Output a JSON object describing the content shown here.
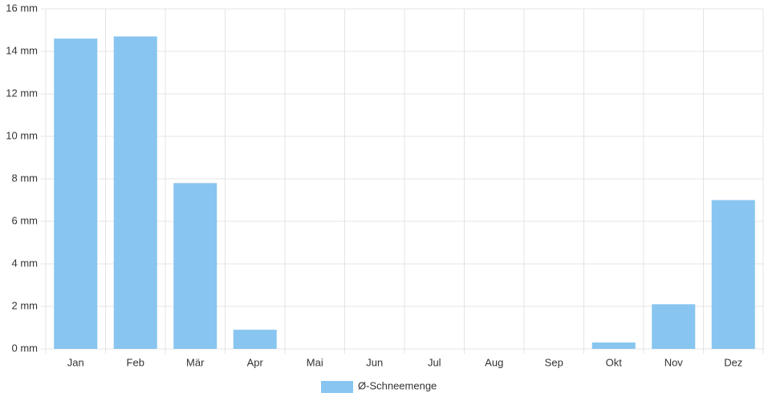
{
  "chart_data": {
    "type": "bar",
    "categories": [
      "Jan",
      "Feb",
      "Mär",
      "Apr",
      "Mai",
      "Jun",
      "Jul",
      "Aug",
      "Sep",
      "Okt",
      "Nov",
      "Dez"
    ],
    "series": [
      {
        "name": "Ø-Schneemenge",
        "color": "#88c5f0",
        "values": [
          14.6,
          14.7,
          7.8,
          0.9,
          0,
          0,
          0,
          0,
          0,
          0.3,
          2.1,
          7.0
        ]
      }
    ],
    "ylim": [
      0,
      16
    ],
    "yticks": [
      {
        "value": 0,
        "label": "0 mm"
      },
      {
        "value": 2,
        "label": "2 mm"
      },
      {
        "value": 4,
        "label": "4 mm"
      },
      {
        "value": 6,
        "label": "6 mm"
      },
      {
        "value": 8,
        "label": "8 mm"
      },
      {
        "value": 10,
        "label": "10 mm"
      },
      {
        "value": 12,
        "label": "12 mm"
      },
      {
        "value": 14,
        "label": "14 mm"
      },
      {
        "value": 16,
        "label": "16 mm"
      }
    ],
    "grid": true,
    "legend": "bottom"
  }
}
